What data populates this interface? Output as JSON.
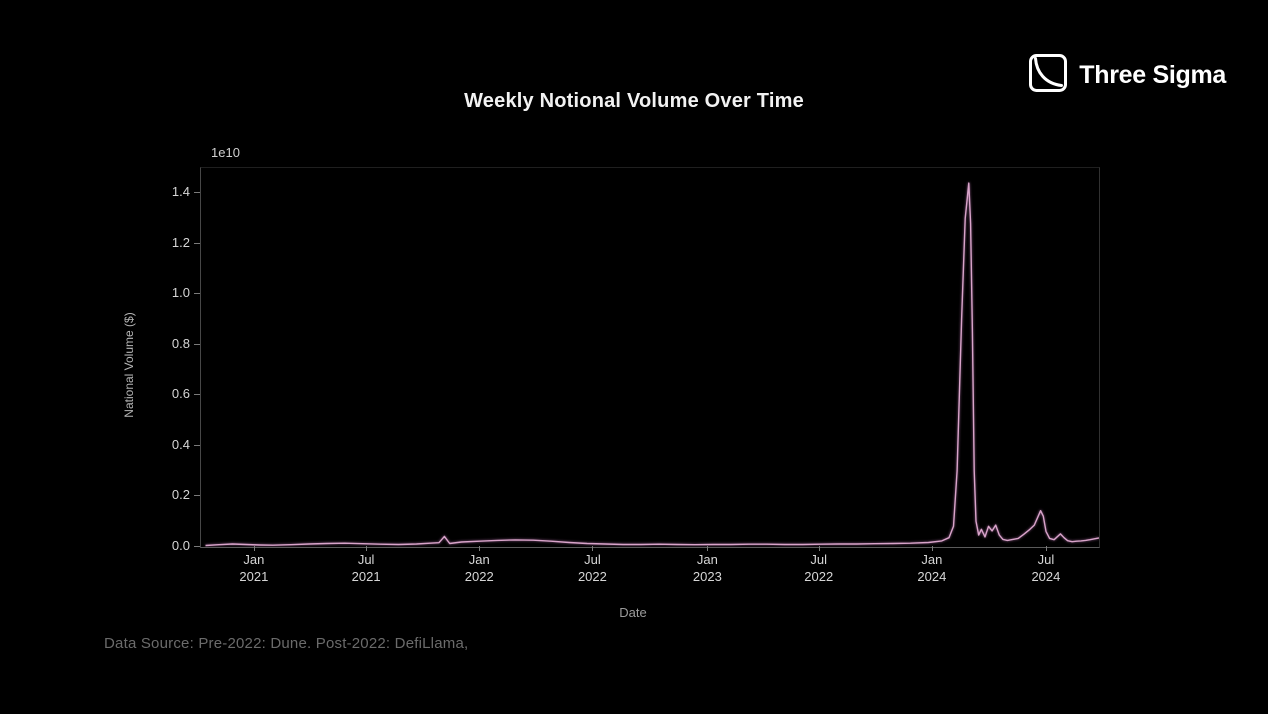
{
  "page": {
    "title": "Weekly Notional Volume Over Time",
    "background": "#000000"
  },
  "logo": {
    "text": "Three Sigma",
    "icon": "three-sigma-decay-curve-square",
    "color": "#ffffff"
  },
  "footer": {
    "data_source": "Data Source: Pre-2022: Dune. Post-2022: DefiLlama,"
  },
  "chart_data": {
    "type": "line",
    "title": "Weekly Notional Volume Over Time",
    "xlabel": "Date",
    "ylabel": "National Volume ($)",
    "y_offset_label": "1e10",
    "grid": false,
    "legend": null,
    "line_color": "#d9a4ca",
    "ylim_e10": [
      0,
      1.5
    ],
    "y_ticks_e10": [
      0.0,
      0.2,
      0.4,
      0.6,
      0.8,
      1.0,
      1.2,
      1.4
    ],
    "y_tick_labels": [
      "0.0",
      "0.2",
      "0.4",
      "0.6",
      "0.8",
      "1.0",
      "1.2",
      "1.4"
    ],
    "x_ticks": [
      {
        "frac": 0.06,
        "line1": "Jan",
        "line2": "2021"
      },
      {
        "frac": 0.185,
        "line1": "Jul",
        "line2": "2021"
      },
      {
        "frac": 0.311,
        "line1": "Jan",
        "line2": "2022"
      },
      {
        "frac": 0.437,
        "line1": "Jul",
        "line2": "2022"
      },
      {
        "frac": 0.565,
        "line1": "Jan",
        "line2": "2023"
      },
      {
        "frac": 0.689,
        "line1": "Jul",
        "line2": "2022"
      },
      {
        "frac": 0.815,
        "line1": "Jan",
        "line2": "2024"
      },
      {
        "frac": 0.942,
        "line1": "Jul",
        "line2": "2024"
      }
    ],
    "series": [
      {
        "name": "Weekly Notional Volume",
        "color": "#d9a4ca",
        "points_xfrac_value_e10": [
          [
            0.005,
            0.004
          ],
          [
            0.02,
            0.007
          ],
          [
            0.035,
            0.01
          ],
          [
            0.05,
            0.008
          ],
          [
            0.065,
            0.006
          ],
          [
            0.08,
            0.005
          ],
          [
            0.1,
            0.007
          ],
          [
            0.12,
            0.01
          ],
          [
            0.14,
            0.012
          ],
          [
            0.16,
            0.013
          ],
          [
            0.18,
            0.011
          ],
          [
            0.2,
            0.009
          ],
          [
            0.22,
            0.008
          ],
          [
            0.24,
            0.01
          ],
          [
            0.255,
            0.013
          ],
          [
            0.265,
            0.015
          ],
          [
            0.271,
            0.04
          ],
          [
            0.277,
            0.012
          ],
          [
            0.29,
            0.018
          ],
          [
            0.31,
            0.021
          ],
          [
            0.33,
            0.024
          ],
          [
            0.35,
            0.026
          ],
          [
            0.37,
            0.025
          ],
          [
            0.39,
            0.021
          ],
          [
            0.41,
            0.016
          ],
          [
            0.43,
            0.012
          ],
          [
            0.45,
            0.01
          ],
          [
            0.47,
            0.008
          ],
          [
            0.49,
            0.008
          ],
          [
            0.51,
            0.009
          ],
          [
            0.53,
            0.008
          ],
          [
            0.55,
            0.007
          ],
          [
            0.57,
            0.008
          ],
          [
            0.59,
            0.008
          ],
          [
            0.61,
            0.009
          ],
          [
            0.63,
            0.009
          ],
          [
            0.65,
            0.008
          ],
          [
            0.67,
            0.008
          ],
          [
            0.69,
            0.009
          ],
          [
            0.71,
            0.01
          ],
          [
            0.73,
            0.01
          ],
          [
            0.75,
            0.011
          ],
          [
            0.77,
            0.012
          ],
          [
            0.79,
            0.013
          ],
          [
            0.81,
            0.016
          ],
          [
            0.825,
            0.022
          ],
          [
            0.833,
            0.035
          ],
          [
            0.838,
            0.08
          ],
          [
            0.842,
            0.3
          ],
          [
            0.847,
            0.9
          ],
          [
            0.851,
            1.3
          ],
          [
            0.855,
            1.44
          ],
          [
            0.857,
            1.28
          ],
          [
            0.859,
            0.85
          ],
          [
            0.861,
            0.3
          ],
          [
            0.863,
            0.1
          ],
          [
            0.866,
            0.045
          ],
          [
            0.869,
            0.068
          ],
          [
            0.873,
            0.038
          ],
          [
            0.877,
            0.08
          ],
          [
            0.881,
            0.062
          ],
          [
            0.885,
            0.085
          ],
          [
            0.889,
            0.045
          ],
          [
            0.893,
            0.028
          ],
          [
            0.898,
            0.024
          ],
          [
            0.904,
            0.028
          ],
          [
            0.91,
            0.032
          ],
          [
            0.916,
            0.048
          ],
          [
            0.922,
            0.065
          ],
          [
            0.928,
            0.085
          ],
          [
            0.935,
            0.142
          ],
          [
            0.938,
            0.12
          ],
          [
            0.941,
            0.06
          ],
          [
            0.945,
            0.032
          ],
          [
            0.95,
            0.027
          ],
          [
            0.957,
            0.05
          ],
          [
            0.961,
            0.035
          ],
          [
            0.965,
            0.023
          ],
          [
            0.97,
            0.019
          ],
          [
            0.975,
            0.021
          ],
          [
            0.98,
            0.022
          ],
          [
            0.985,
            0.024
          ],
          [
            0.99,
            0.027
          ],
          [
            1.0,
            0.034
          ]
        ]
      }
    ]
  }
}
